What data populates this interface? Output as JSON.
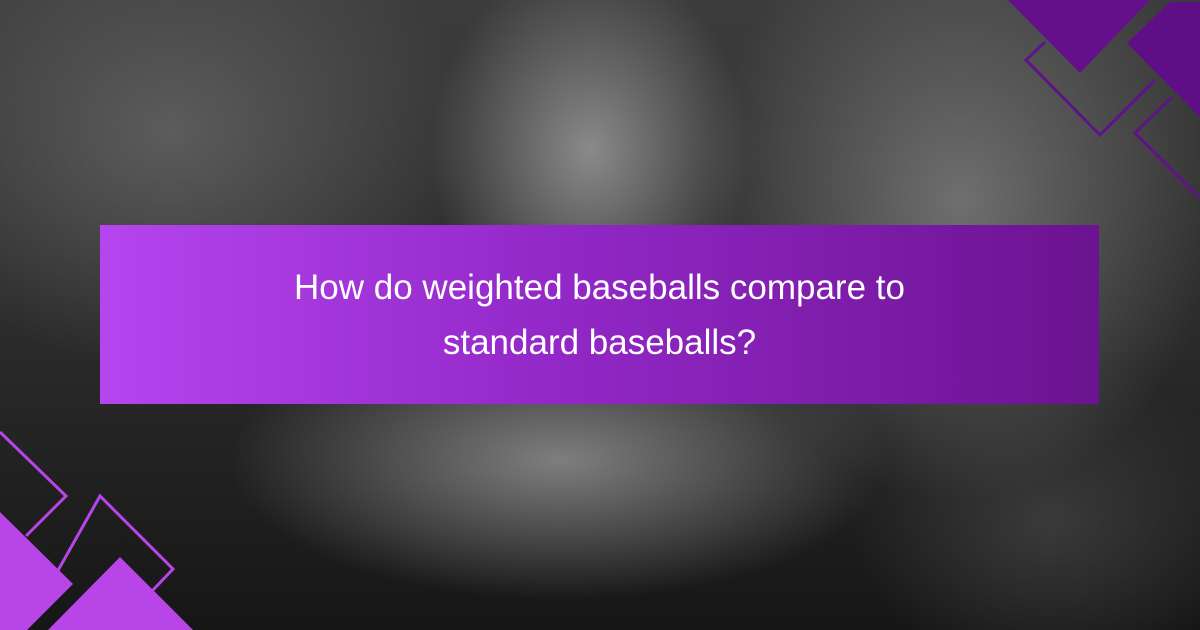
{
  "title": "How do weighted baseballs compare to standard baseballs?",
  "colors": {
    "banner_start": "#b545ef",
    "banner_end": "#6b1390",
    "accent_light": "#b845e8",
    "accent_dark": "#64108c"
  }
}
